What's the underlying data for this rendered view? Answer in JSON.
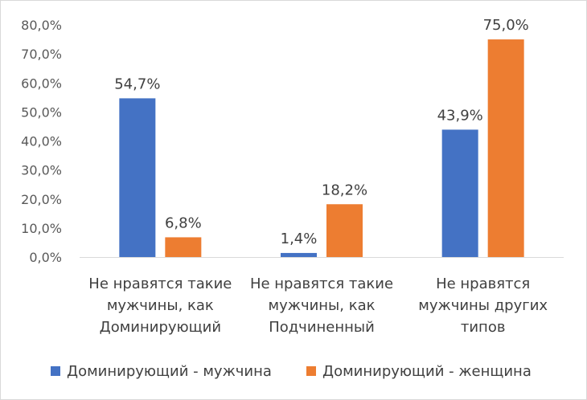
{
  "chart_data": {
    "type": "bar",
    "categories": [
      [
        "Не нравятся такие",
        "мужчины, как",
        "Доминирующий"
      ],
      [
        "Не нравятся такие",
        "мужчины, как",
        "Подчиненный"
      ],
      [
        "Не нравятся",
        "мужчины других",
        "типов"
      ]
    ],
    "series": [
      {
        "name": "Доминирующий - мужчина",
        "color": "#4472C4",
        "values": [
          54.7,
          1.4,
          43.9
        ],
        "labels": [
          "54,7%",
          "1,4%",
          "43,9%"
        ]
      },
      {
        "name": "Доминирующий - женщина",
        "color": "#ED7D31",
        "values": [
          6.8,
          18.2,
          75.0
        ],
        "labels": [
          "6,8%",
          "18,2%",
          "75,0%"
        ]
      }
    ],
    "ylim": [
      0,
      80
    ],
    "yticks": [
      0,
      10,
      20,
      30,
      40,
      50,
      60,
      70,
      80
    ],
    "ytick_labels": [
      "0,0%",
      "10,0%",
      "20,0%",
      "30,0%",
      "40,0%",
      "50,0%",
      "60,0%",
      "70,0%",
      "80,0%"
    ],
    "grid": false,
    "legend": "bottom",
    "axis_color": "#d9d9d9"
  }
}
